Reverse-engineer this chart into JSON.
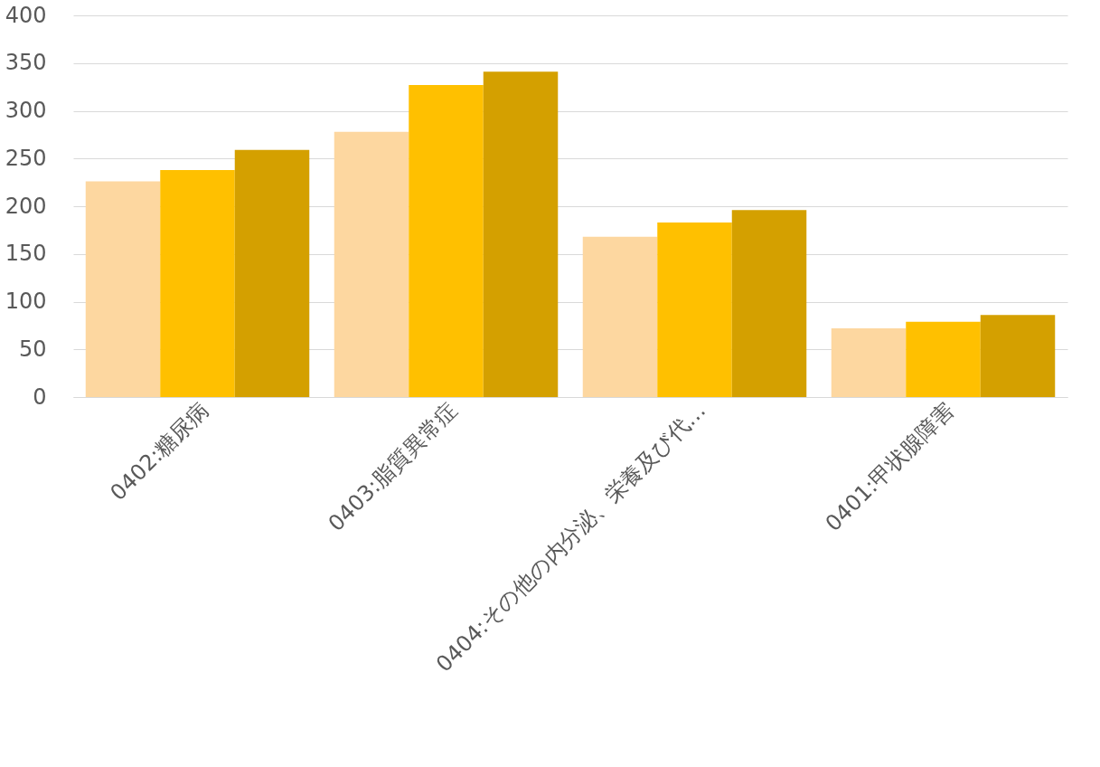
{
  "chart_data": {
    "type": "bar",
    "categories": [
      "0402:糖尿病",
      "0403:脂質異常症",
      "0404:その他の内分泌、栄養及び代…",
      "0401:甲状腺障害"
    ],
    "series": [
      {
        "color": "#fdd7a0",
        "values": [
          226,
          278,
          168,
          72
        ]
      },
      {
        "color": "#ffc000",
        "values": [
          238,
          327,
          183,
          79
        ]
      },
      {
        "color": "#d4a000",
        "values": [
          259,
          341,
          196,
          86
        ]
      }
    ],
    "ylim": [
      0,
      400
    ],
    "yticks": [
      0,
      50,
      100,
      150,
      200,
      250,
      300,
      350,
      400
    ],
    "grid": "y",
    "legend": false
  }
}
